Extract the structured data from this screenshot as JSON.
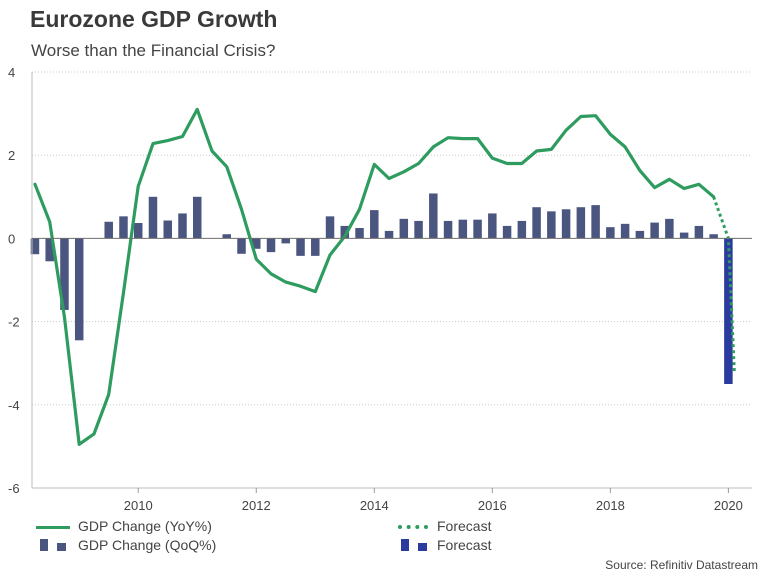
{
  "chart_data": {
    "type": "bar+line",
    "title": "Eurozone GDP Growth",
    "subtitle": "Worse than the Financial Crisis?",
    "source": "Source: Refinitiv Datastream",
    "xlabel": "",
    "ylabel": "",
    "ylim": [
      -6,
      4
    ],
    "yticks": [
      4,
      2,
      0,
      -2,
      -4,
      -6
    ],
    "xlim": [
      2008.2,
      2020.4
    ],
    "xticks": [
      2010,
      2012,
      2014,
      2016,
      2018,
      2020
    ],
    "grid": "horizontal-dotted",
    "colors": {
      "yoy": "#2e9b5f",
      "qoq": "#4b5680",
      "qoq_forecast": "#2b3a9e"
    },
    "series": [
      {
        "name": "GDP Change (YoY%)",
        "style": "line",
        "x": [
          2008.25,
          2008.5,
          2008.75,
          2009.0,
          2009.25,
          2009.5,
          2009.75,
          2010.0,
          2010.25,
          2010.5,
          2010.75,
          2011.0,
          2011.25,
          2011.5,
          2011.75,
          2012.0,
          2012.25,
          2012.5,
          2012.75,
          2013.0,
          2013.25,
          2013.5,
          2013.75,
          2014.0,
          2014.25,
          2014.5,
          2014.75,
          2015.0,
          2015.25,
          2015.5,
          2015.75,
          2016.0,
          2016.25,
          2016.5,
          2016.75,
          2017.0,
          2017.25,
          2017.5,
          2017.75,
          2018.0,
          2018.25,
          2018.5,
          2018.75,
          2019.0,
          2019.25,
          2019.5,
          2019.75
        ],
        "values": [
          1.3,
          0.4,
          -1.9,
          -4.95,
          -4.7,
          -3.75,
          -1.3,
          1.25,
          2.28,
          2.35,
          2.45,
          3.1,
          2.1,
          1.72,
          0.7,
          -0.5,
          -0.85,
          -1.05,
          -1.15,
          -1.28,
          -0.4,
          0.05,
          0.7,
          1.78,
          1.44,
          1.6,
          1.8,
          2.2,
          2.42,
          2.4,
          2.4,
          1.93,
          1.8,
          1.8,
          2.1,
          2.14,
          2.6,
          2.93,
          2.95,
          2.5,
          2.2,
          1.63,
          1.22,
          1.42,
          1.2,
          1.3,
          1.0
        ]
      },
      {
        "name": "Forecast",
        "style": "dotted-line",
        "x": [
          2019.75,
          2020.0,
          2020.1
        ],
        "values": [
          1.0,
          0.0,
          -3.2
        ]
      },
      {
        "name": "GDP Change (QoQ%)",
        "style": "bar",
        "x": [
          2008.25,
          2008.5,
          2008.75,
          2009.0,
          2009.25,
          2009.5,
          2009.75,
          2010.0,
          2010.25,
          2010.5,
          2010.75,
          2011.0,
          2011.25,
          2011.5,
          2011.75,
          2012.0,
          2012.25,
          2012.5,
          2012.75,
          2013.0,
          2013.25,
          2013.5,
          2013.75,
          2014.0,
          2014.25,
          2014.5,
          2014.75,
          2015.0,
          2015.25,
          2015.5,
          2015.75,
          2016.0,
          2016.25,
          2016.5,
          2016.75,
          2017.0,
          2017.25,
          2017.5,
          2017.75,
          2018.0,
          2018.25,
          2018.5,
          2018.75,
          2019.0,
          2019.25,
          2019.5,
          2019.75
        ],
        "values": [
          -0.38,
          -0.55,
          -1.72,
          -2.45,
          0.0,
          0.4,
          0.53,
          0.37,
          1.0,
          0.43,
          0.6,
          1.0,
          0.0,
          0.1,
          -0.37,
          -0.25,
          -0.33,
          -0.12,
          -0.42,
          -0.42,
          0.53,
          0.3,
          0.25,
          0.68,
          0.18,
          0.47,
          0.42,
          1.08,
          0.42,
          0.45,
          0.45,
          0.6,
          0.3,
          0.42,
          0.75,
          0.65,
          0.7,
          0.75,
          0.8,
          0.27,
          0.35,
          0.18,
          0.38,
          0.47,
          0.14,
          0.3,
          0.1
        ]
      },
      {
        "name": "Forecast",
        "style": "bar",
        "x": [
          2020.0
        ],
        "values": [
          -3.5
        ]
      }
    ],
    "legend": {
      "placement": "bottom",
      "yoy_label": "GDP Change (YoY%)",
      "yoy_forecast_label": "Forecast",
      "qoq_label": "GDP Change (QoQ%)",
      "qoq_forecast_label": "Forecast"
    }
  }
}
